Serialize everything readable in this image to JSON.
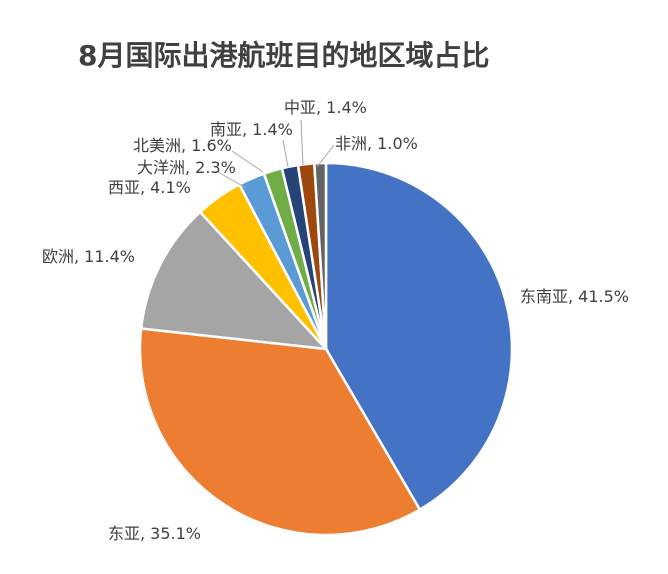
{
  "chart_data": {
    "type": "pie",
    "title": "8月国际出港航班目的地区域占比",
    "categories": [
      "东南亚",
      "东亚",
      "欧洲",
      "西亚",
      "大洋洲",
      "北美洲",
      "南亚",
      "中亚",
      "非洲"
    ],
    "values": [
      41.5,
      35.1,
      11.4,
      4.1,
      2.3,
      1.6,
      1.4,
      1.4,
      1.0
    ],
    "labels": [
      "东南亚, 41.5%",
      "东亚, 35.1%",
      "欧洲, 11.4%",
      "西亚, 4.1%",
      "大洋洲, 2.3%",
      "北美洲, 1.6%",
      "南亚, 1.4%",
      "中亚, 1.4%",
      "非洲, 1.0%"
    ],
    "colors": [
      "#4472C4",
      "#ED7D31",
      "#A5A5A5",
      "#FFC000",
      "#5B9BD5",
      "#70AD47",
      "#264478",
      "#9E480E",
      "#636363"
    ],
    "legend": "none"
  }
}
